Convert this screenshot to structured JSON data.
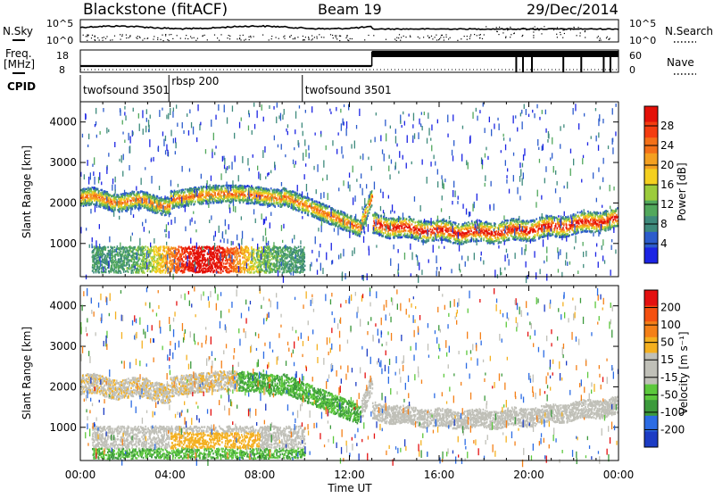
{
  "header": {
    "station": "Blackstone (fitACF)",
    "beam": "Beam 19",
    "date": "29/Dec/2014"
  },
  "left_labels": {
    "nsky": "N.Sky",
    "freq_line1": "Freq.",
    "freq_line2": "[MHz]",
    "cpid": "CPID",
    "nsky_ticks": [
      "10^5",
      "10^0"
    ],
    "freq_ticks": [
      "18",
      "8"
    ]
  },
  "right_labels": {
    "nsearch": "N.Search",
    "nave": "Nave",
    "nsearch_ticks": [
      "10^5",
      "10^0"
    ],
    "nave_ticks": [
      "60",
      "0"
    ]
  },
  "cpid_segments": [
    {
      "label": "twofsound 3501",
      "start_hour": 0
    },
    {
      "label": "rbsp 200",
      "start_hour": 3.95
    },
    {
      "label": "twofsound 3501",
      "start_hour": 9.9
    }
  ],
  "chart_data": [
    {
      "type": "heatmap",
      "name": "power",
      "xlabel": "",
      "ylabel": "Slant Range [km]",
      "xlim": [
        0,
        24
      ],
      "ylim": [
        180,
        4500
      ],
      "yticks": [
        1000,
        2000,
        3000,
        4000
      ],
      "colorbar_label": "Power [dB]",
      "colorbar_ticks": [
        4,
        8,
        12,
        16,
        20,
        24,
        28
      ],
      "colorbar_colors": [
        "#1c24e4",
        "#2c5ccc",
        "#3e8a7c",
        "#52a85c",
        "#9ccc3c",
        "#f4d020",
        "#f4a020",
        "#f47018",
        "#f43c10",
        "#e41008"
      ]
    },
    {
      "type": "heatmap",
      "name": "velocity",
      "xlabel": "Time UT",
      "ylabel": "Slant Range [km]",
      "xlim": [
        0,
        24
      ],
      "ylim": [
        180,
        4500
      ],
      "xticks": [
        "00:00",
        "04:00",
        "08:00",
        "12:00",
        "16:00",
        "20:00",
        "00:00"
      ],
      "yticks": [
        1000,
        2000,
        3000,
        4000
      ],
      "colorbar_label": "Velocity [m s⁻¹]",
      "colorbar_ticks": [
        200,
        100,
        50,
        15,
        -15,
        -50,
        -100,
        -200
      ],
      "colorbar_colors": [
        "#1c3cc4",
        "#2c6ce4",
        "#3c9a3c",
        "#5cc83c",
        "#c0c0b8",
        "#c0c0b8",
        "#f4b020",
        "#f48018",
        "#f45010",
        "#e41010"
      ]
    }
  ],
  "status": {
    "freq_low_mhz": 10.6,
    "freq_switch_hour": 13.0,
    "freq_high_mhz": 17.8
  },
  "colors": {
    "axis": "#000000",
    "background": "#ffffff"
  }
}
